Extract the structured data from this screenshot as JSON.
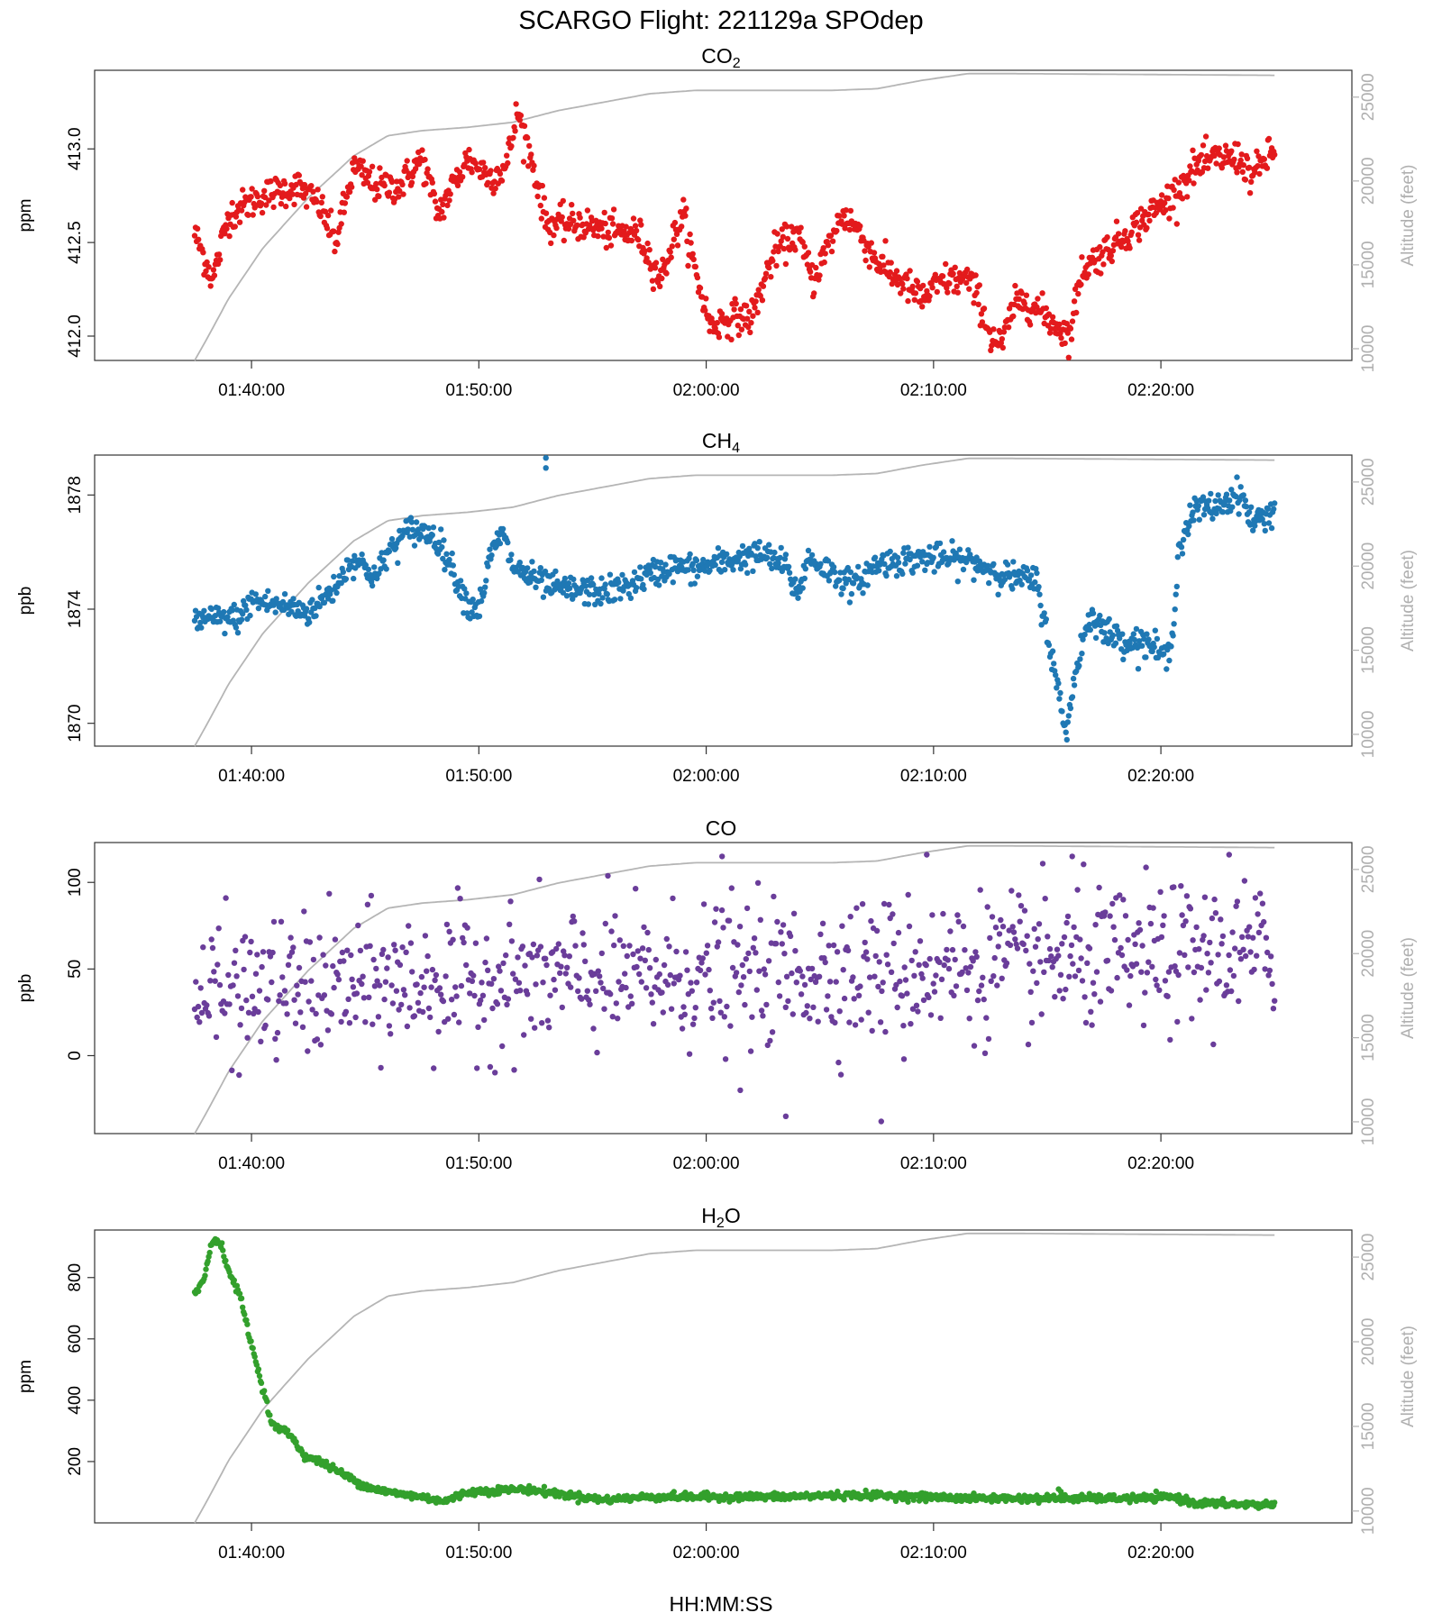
{
  "title": "SCARGO Flight: 221129a  SPOdep",
  "x_axis_label": "HH:MM:SS",
  "chart_data": [
    {
      "type": "scatter",
      "title_main": "CO",
      "title_sub": "2",
      "ylabel": "ppm",
      "y2label": "Altitude (feet)",
      "color": "#e31a1c",
      "ylim": [
        411.87,
        413.42
      ],
      "yticks": [
        412.0,
        412.5,
        413.0
      ],
      "ytick_labels": [
        "412.0",
        "412.5",
        "413.0"
      ],
      "anchors": [
        [
          0,
          412.55
        ],
        [
          0.8,
          412.3
        ],
        [
          1.5,
          412.65
        ],
        [
          3,
          412.75
        ],
        [
          4.5,
          412.8
        ],
        [
          5.5,
          412.7
        ],
        [
          6.2,
          412.5
        ],
        [
          7,
          412.9
        ],
        [
          8,
          412.8
        ],
        [
          9,
          412.8
        ],
        [
          10,
          412.95
        ],
        [
          10.7,
          412.65
        ],
        [
          12,
          412.95
        ],
        [
          13,
          412.85
        ],
        [
          13.7,
          412.9
        ],
        [
          14.2,
          413.2
        ],
        [
          14.8,
          412.95
        ],
        [
          15.5,
          412.6
        ],
        [
          17,
          412.6
        ],
        [
          18.5,
          412.55
        ],
        [
          19.5,
          412.55
        ],
        [
          20.5,
          412.3
        ],
        [
          21,
          412.5
        ],
        [
          21.5,
          412.65
        ],
        [
          22,
          412.35
        ],
        [
          22.7,
          412.05
        ],
        [
          23.5,
          412.1
        ],
        [
          24.5,
          412.1
        ],
        [
          25.5,
          412.45
        ],
        [
          26.5,
          412.55
        ],
        [
          27.2,
          412.3
        ],
        [
          28.5,
          412.65
        ],
        [
          29,
          412.6
        ],
        [
          30,
          412.4
        ],
        [
          31,
          412.3
        ],
        [
          32,
          412.2
        ],
        [
          33,
          412.3
        ],
        [
          34,
          412.3
        ],
        [
          34.5,
          412.2
        ],
        [
          35,
          412.0
        ],
        [
          35.5,
          411.95
        ],
        [
          36,
          412.15
        ],
        [
          36.5,
          412.2
        ],
        [
          37.5,
          412.1
        ],
        [
          38.5,
          412.0
        ],
        [
          39,
          412.35
        ],
        [
          40,
          412.45
        ],
        [
          41,
          412.55
        ],
        [
          42,
          412.65
        ],
        [
          43,
          412.75
        ],
        [
          44,
          412.9
        ],
        [
          45,
          412.95
        ],
        [
          46,
          412.95
        ],
        [
          46.5,
          412.85
        ],
        [
          47.5,
          413.0
        ]
      ],
      "noise": 0.045,
      "alt": [
        [
          0,
          9300
        ],
        [
          0.5,
          10500
        ],
        [
          1.5,
          13000
        ],
        [
          3,
          16000
        ],
        [
          5,
          19000
        ],
        [
          7,
          21500
        ],
        [
          8.5,
          22700
        ],
        [
          10,
          23000
        ],
        [
          12,
          23200
        ],
        [
          14,
          23500
        ],
        [
          16,
          24200
        ],
        [
          18,
          24700
        ],
        [
          20,
          25200
        ],
        [
          22,
          25400
        ],
        [
          26,
          25400
        ],
        [
          28,
          25400
        ],
        [
          30,
          25500
        ],
        [
          32,
          26000
        ],
        [
          34,
          26400
        ],
        [
          36,
          26400
        ],
        [
          47.5,
          26300
        ]
      ]
    },
    {
      "type": "scatter",
      "title_main": "CH",
      "title_sub": "4",
      "ylabel": "ppb",
      "y2label": "Altitude (feet)",
      "color": "#1f78b4",
      "ylim": [
        1869.2,
        1879.4
      ],
      "yticks": [
        1870,
        1874,
        1878
      ],
      "ytick_labels": [
        "1870",
        "1874",
        "1878"
      ],
      "anchors": [
        [
          0,
          1873.6
        ],
        [
          2,
          1873.7
        ],
        [
          2.5,
          1874.3
        ],
        [
          4,
          1874.1
        ],
        [
          5,
          1873.9
        ],
        [
          6,
          1874.6
        ],
        [
          7,
          1875.8
        ],
        [
          8,
          1875.1
        ],
        [
          8.5,
          1876.0
        ],
        [
          9.5,
          1876.8
        ],
        [
          10.5,
          1876.6
        ],
        [
          11,
          1876.0
        ],
        [
          12,
          1874.2
        ],
        [
          12.5,
          1874.0
        ],
        [
          13,
          1875.8
        ],
        [
          13.5,
          1876.7
        ],
        [
          14,
          1875.5
        ],
        [
          15,
          1875.0
        ],
        [
          16,
          1874.7
        ],
        [
          18,
          1874.6
        ],
        [
          19,
          1874.8
        ],
        [
          20,
          1875.2
        ],
        [
          21,
          1875.5
        ],
        [
          22,
          1875.4
        ],
        [
          23,
          1875.6
        ],
        [
          24,
          1875.8
        ],
        [
          25,
          1875.9
        ],
        [
          26,
          1875.5
        ],
        [
          26.5,
          1874.5
        ],
        [
          27,
          1875.8
        ],
        [
          28,
          1875.3
        ],
        [
          29,
          1874.8
        ],
        [
          30,
          1875.6
        ],
        [
          31,
          1875.7
        ],
        [
          32,
          1875.8
        ],
        [
          34,
          1875.7
        ],
        [
          35,
          1875.4
        ],
        [
          36,
          1875.1
        ],
        [
          37,
          1875.0
        ],
        [
          37.5,
          1873.2
        ],
        [
          38.3,
          1869.7
        ],
        [
          39,
          1872.8
        ],
        [
          39.5,
          1873.9
        ],
        [
          40,
          1873.2
        ],
        [
          41,
          1872.9
        ],
        [
          42,
          1872.8
        ],
        [
          42.5,
          1872.4
        ],
        [
          42.9,
          1872.3
        ],
        [
          43.3,
          1876.2
        ],
        [
          44,
          1877.5
        ],
        [
          45,
          1877.6
        ],
        [
          46,
          1878.1
        ],
        [
          46.5,
          1877.0
        ],
        [
          47.5,
          1877.5
        ]
      ],
      "noise": 0.25,
      "outliers": [
        [
          15.45,
          1879.3
        ],
        [
          15.45,
          1878.95
        ]
      ],
      "alt": [
        [
          0,
          9300
        ],
        [
          0.5,
          10500
        ],
        [
          1.5,
          13000
        ],
        [
          3,
          16000
        ],
        [
          5,
          19000
        ],
        [
          7,
          21500
        ],
        [
          8.5,
          22700
        ],
        [
          10,
          23000
        ],
        [
          12,
          23200
        ],
        [
          14,
          23500
        ],
        [
          16,
          24200
        ],
        [
          18,
          24700
        ],
        [
          20,
          25200
        ],
        [
          22,
          25400
        ],
        [
          26,
          25400
        ],
        [
          28,
          25400
        ],
        [
          30,
          25500
        ],
        [
          32,
          26000
        ],
        [
          34,
          26400
        ],
        [
          36,
          26400
        ],
        [
          47.5,
          26300
        ]
      ]
    },
    {
      "type": "scatter",
      "title_main": "CO",
      "title_sub": "",
      "ylabel": "ppb",
      "y2label": "Altitude (feet)",
      "color": "#6a3d9a",
      "ylim": [
        -45,
        123
      ],
      "yticks": [
        0,
        50,
        100
      ],
      "ytick_labels": [
        "0",
        "50",
        "100"
      ],
      "anchors": [
        [
          0,
          35
        ],
        [
          10,
          42
        ],
        [
          20,
          45
        ],
        [
          30,
          50
        ],
        [
          40,
          55
        ],
        [
          47.5,
          60
        ]
      ],
      "noise": 20,
      "outliers": [
        [
          23.2,
          115
        ],
        [
          32.2,
          116
        ],
        [
          38.6,
          115
        ],
        [
          45.5,
          116
        ],
        [
          26.0,
          -35
        ],
        [
          30.2,
          -38
        ],
        [
          24.0,
          -20
        ],
        [
          31.2,
          -2
        ]
      ],
      "alt": [
        [
          0,
          9300
        ],
        [
          0.5,
          10500
        ],
        [
          1.5,
          13000
        ],
        [
          3,
          16000
        ],
        [
          5,
          19000
        ],
        [
          7,
          21500
        ],
        [
          8.5,
          22700
        ],
        [
          10,
          23000
        ],
        [
          12,
          23200
        ],
        [
          14,
          23500
        ],
        [
          16,
          24200
        ],
        [
          18,
          24700
        ],
        [
          20,
          25200
        ],
        [
          22,
          25400
        ],
        [
          26,
          25400
        ],
        [
          28,
          25400
        ],
        [
          30,
          25500
        ],
        [
          32,
          26000
        ],
        [
          34,
          26400
        ],
        [
          36,
          26400
        ],
        [
          47.5,
          26300
        ]
      ]
    },
    {
      "type": "scatter",
      "title_main": "H",
      "title_sub": "2",
      "title_tail": "O",
      "ylabel": "ppm",
      "y2label": "Altitude (feet)",
      "color": "#33a02c",
      "ylim": [
        0,
        955
      ],
      "yticks": [
        200,
        400,
        600,
        800
      ],
      "ytick_labels": [
        "200",
        "400",
        "600",
        "800"
      ],
      "anchors": [
        [
          0,
          750
        ],
        [
          0.4,
          790
        ],
        [
          0.7,
          900
        ],
        [
          0.9,
          930
        ],
        [
          1.2,
          900
        ],
        [
          1.5,
          820
        ],
        [
          2,
          740
        ],
        [
          2.5,
          580
        ],
        [
          3,
          440
        ],
        [
          3.4,
          320
        ],
        [
          4.2,
          290
        ],
        [
          4.8,
          220
        ],
        [
          5.5,
          200
        ],
        [
          6.5,
          160
        ],
        [
          7.5,
          120
        ],
        [
          8.5,
          100
        ],
        [
          10,
          85
        ],
        [
          11,
          70
        ],
        [
          12,
          100
        ],
        [
          13,
          105
        ],
        [
          14.5,
          110
        ],
        [
          16,
          95
        ],
        [
          18,
          75
        ],
        [
          20,
          85
        ],
        [
          22,
          85
        ],
        [
          24,
          85
        ],
        [
          26,
          85
        ],
        [
          28,
          90
        ],
        [
          30,
          90
        ],
        [
          32,
          85
        ],
        [
          34,
          80
        ],
        [
          36,
          80
        ],
        [
          38,
          80
        ],
        [
          40,
          80
        ],
        [
          42,
          80
        ],
        [
          43,
          85
        ],
        [
          44,
          65
        ],
        [
          46,
          60
        ],
        [
          47.5,
          60
        ]
      ],
      "noise": 6,
      "outliers": [
        [
          38.0,
          110
        ],
        [
          38.1,
          102
        ]
      ],
      "alt": [
        [
          0,
          9300
        ],
        [
          0.5,
          10500
        ],
        [
          1.5,
          13000
        ],
        [
          3,
          16000
        ],
        [
          5,
          19000
        ],
        [
          7,
          21500
        ],
        [
          8.5,
          22700
        ],
        [
          10,
          23000
        ],
        [
          12,
          23200
        ],
        [
          14,
          23500
        ],
        [
          16,
          24200
        ],
        [
          18,
          24700
        ],
        [
          20,
          25200
        ],
        [
          22,
          25400
        ],
        [
          26,
          25400
        ],
        [
          28,
          25400
        ],
        [
          30,
          25500
        ],
        [
          32,
          26000
        ],
        [
          34,
          26400
        ],
        [
          36,
          26400
        ],
        [
          47.5,
          26300
        ]
      ]
    }
  ],
  "x_data": {
    "start_label": "01:37:30",
    "end_label": "02:25:00",
    "xlim_minutes_from_0130": [
      3.1,
      58.4
    ],
    "data_start_minutes_from_0130": 7.5,
    "data_end_minutes_from_0130": 55.0,
    "tick_minutes_from_0130": [
      10,
      20,
      30,
      40,
      50
    ],
    "tick_labels": [
      "01:40:00",
      "01:50:00",
      "02:00:00",
      "02:10:00",
      "02:20:00"
    ]
  },
  "y2": {
    "ylim": [
      9300,
      26600
    ],
    "ticks": [
      10000,
      15000,
      20000,
      25000
    ],
    "tick_labels": [
      "10000",
      "15000",
      "20000",
      "25000"
    ]
  }
}
